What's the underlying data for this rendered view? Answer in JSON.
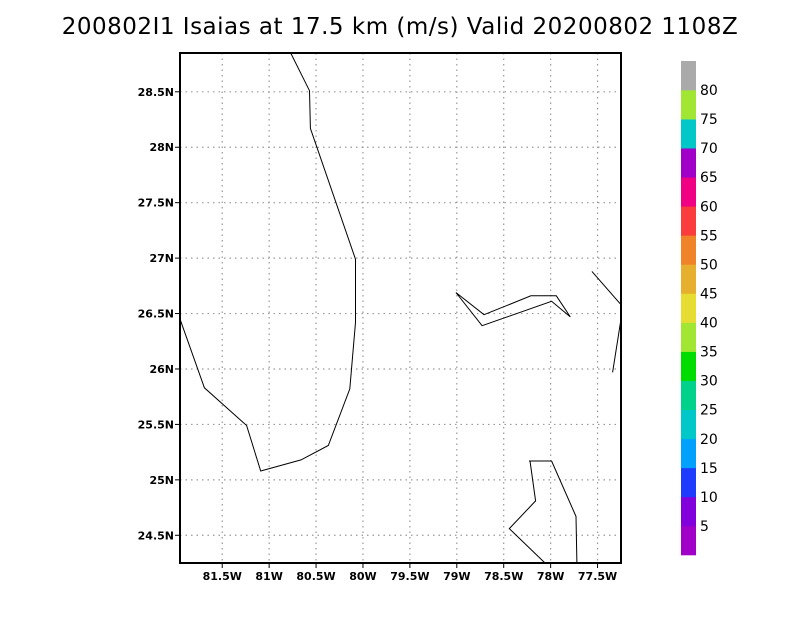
{
  "title": "200802I1 Isaias at 17.5 km (m/s) Valid 20200802 1108Z",
  "map": {
    "lon_range": [
      -81.95,
      -77.25
    ],
    "lat_range": [
      24.25,
      28.85
    ],
    "lat_ticks": [
      {
        "value": 24.5,
        "label": "24.5N"
      },
      {
        "value": 25.0,
        "label": "25N"
      },
      {
        "value": 25.5,
        "label": "25.5N"
      },
      {
        "value": 26.0,
        "label": "26N"
      },
      {
        "value": 26.5,
        "label": "26.5N"
      },
      {
        "value": 27.0,
        "label": "27N"
      },
      {
        "value": 27.5,
        "label": "27.5N"
      },
      {
        "value": 28.0,
        "label": "28N"
      },
      {
        "value": 28.5,
        "label": "28.5N"
      }
    ],
    "lon_ticks": [
      {
        "value": -81.5,
        "label": "81.5W"
      },
      {
        "value": -81.0,
        "label": "81W"
      },
      {
        "value": -80.5,
        "label": "80.5W"
      },
      {
        "value": -80.0,
        "label": "80W"
      },
      {
        "value": -79.5,
        "label": "79.5W"
      },
      {
        "value": -79.0,
        "label": "79W"
      },
      {
        "value": -78.5,
        "label": "78.5W"
      },
      {
        "value": -78.0,
        "label": "78W"
      },
      {
        "value": -77.5,
        "label": "77.5W"
      }
    ],
    "grid": true,
    "coastlines": [
      [
        [
          -80.77,
          28.85
        ],
        [
          -80.57,
          28.51
        ],
        [
          -80.56,
          28.17
        ],
        [
          -80.08,
          26.99
        ],
        [
          -80.08,
          26.42
        ],
        [
          -80.14,
          25.82
        ],
        [
          -80.37,
          25.31
        ],
        [
          -80.66,
          25.18
        ],
        [
          -81.09,
          25.08
        ],
        [
          -81.24,
          25.49
        ],
        [
          -81.69,
          25.83
        ],
        [
          -81.95,
          26.45
        ]
      ],
      [
        [
          -79.01,
          26.69
        ],
        [
          -78.71,
          26.49
        ],
        [
          -78.21,
          26.66
        ],
        [
          -77.94,
          26.66
        ],
        [
          -77.79,
          26.47
        ],
        [
          -77.99,
          26.61
        ],
        [
          -78.73,
          26.39
        ],
        [
          -79.01,
          26.69
        ]
      ],
      [
        [
          -77.56,
          26.88
        ],
        [
          -77.25,
          26.58
        ],
        [
          -77.25,
          26.45
        ],
        [
          -77.34,
          25.97
        ]
      ],
      [
        [
          -78.23,
          25.17
        ],
        [
          -77.99,
          25.17
        ],
        [
          -77.73,
          24.67
        ],
        [
          -77.72,
          24.25
        ]
      ],
      [
        [
          -78.22,
          25.17
        ],
        [
          -78.16,
          24.81
        ],
        [
          -78.44,
          24.56
        ],
        [
          -78.06,
          24.25
        ]
      ]
    ]
  },
  "colorbar": {
    "levels": [
      "5",
      "10",
      "15",
      "20",
      "25",
      "30",
      "35",
      "40",
      "45",
      "50",
      "55",
      "60",
      "65",
      "70",
      "75",
      "80"
    ],
    "colors": [
      "#a000c8",
      "#8200dc",
      "#1e3cff",
      "#00a0ff",
      "#00c8c8",
      "#00d28c",
      "#00dc00",
      "#a0e632",
      "#e6dc32",
      "#e6af2d",
      "#f08228",
      "#fa3c3c",
      "#f00082",
      "#a000c8",
      "#00c8c8",
      "#a0e632",
      "#aaaaaa"
    ]
  }
}
